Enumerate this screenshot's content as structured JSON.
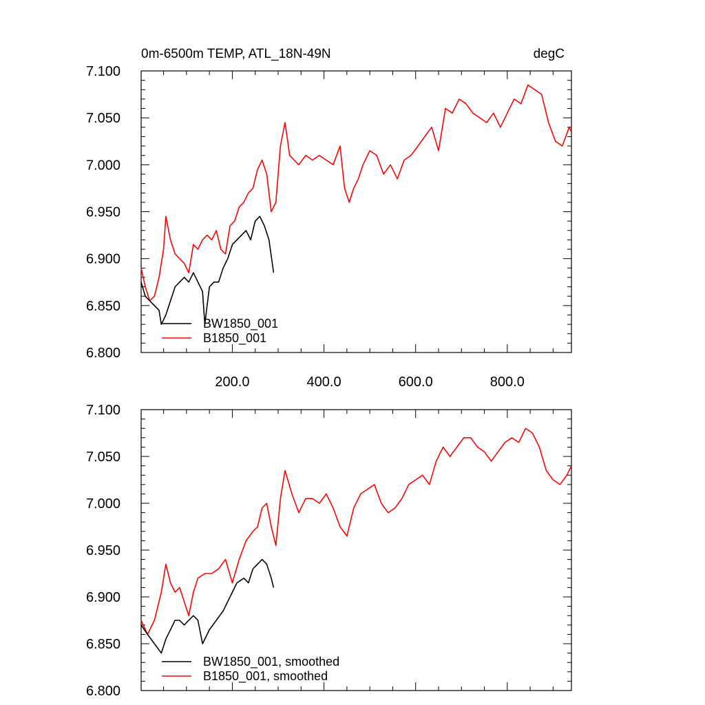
{
  "chart_data": [
    {
      "type": "line",
      "title": "0m-6500m TEMP, ATL_18N-49N",
      "units": "degC",
      "xlim": [
        1,
        940
      ],
      "ylim": [
        6.8,
        7.1
      ],
      "x_ticks": [
        200,
        400,
        600,
        800
      ],
      "x_tick_labels": [
        "200.0",
        "400.0",
        "600.0",
        "800.0"
      ],
      "y_ticks": [
        6.8,
        6.85,
        6.9,
        6.95,
        7.0,
        7.05,
        7.1
      ],
      "y_tick_labels": [
        "6.800",
        "6.850",
        "6.900",
        "6.950",
        "7.000",
        "7.050",
        "7.100"
      ],
      "grid": false,
      "legend_position": "bottom-left",
      "series": [
        {
          "name": "BW1850_001",
          "color": "#000000",
          "x": [
            1,
            10,
            20,
            30,
            40,
            45,
            55,
            65,
            75,
            85,
            95,
            105,
            115,
            125,
            135,
            140,
            150,
            160,
            170,
            180,
            190,
            200,
            210,
            220,
            230,
            240,
            250,
            260,
            270,
            280,
            290
          ],
          "y": [
            6.875,
            6.86,
            6.855,
            6.85,
            6.845,
            6.83,
            6.84,
            6.855,
            6.87,
            6.875,
            6.88,
            6.875,
            6.885,
            6.875,
            6.865,
            6.83,
            6.87,
            6.875,
            6.875,
            6.89,
            6.9,
            6.915,
            6.92,
            6.925,
            6.93,
            6.92,
            6.94,
            6.945,
            6.935,
            6.92,
            6.885
          ]
        },
        {
          "name": "B1850_001",
          "color": "#ff0000",
          "x": [
            1,
            10,
            20,
            30,
            40,
            50,
            55,
            65,
            75,
            85,
            95,
            105,
            115,
            125,
            135,
            145,
            155,
            165,
            175,
            185,
            195,
            205,
            215,
            225,
            235,
            245,
            255,
            265,
            275,
            285,
            295,
            305,
            315,
            325,
            335,
            345,
            360,
            375,
            390,
            405,
            420,
            435,
            445,
            455,
            465,
            475,
            485,
            500,
            515,
            530,
            545,
            560,
            575,
            590,
            605,
            620,
            635,
            650,
            665,
            680,
            695,
            710,
            725,
            740,
            755,
            770,
            785,
            800,
            815,
            830,
            845,
            860,
            875,
            890,
            905,
            920,
            935,
            940
          ],
          "y": [
            6.89,
            6.87,
            6.855,
            6.86,
            6.88,
            6.91,
            6.945,
            6.92,
            6.905,
            6.9,
            6.895,
            6.885,
            6.915,
            6.91,
            6.92,
            6.925,
            6.92,
            6.93,
            6.91,
            6.905,
            6.935,
            6.94,
            6.955,
            6.96,
            6.97,
            6.975,
            6.995,
            7.005,
            6.99,
            6.95,
            6.96,
            7.02,
            7.045,
            7.01,
            7.005,
            7.0,
            7.01,
            7.005,
            7.01,
            7.005,
            7.0,
            7.02,
            6.975,
            6.96,
            6.975,
            6.985,
            7.0,
            7.015,
            7.01,
            6.99,
            7.0,
            6.985,
            7.005,
            7.01,
            7.02,
            7.03,
            7.04,
            7.015,
            7.06,
            7.055,
            7.07,
            7.065,
            7.055,
            7.05,
            7.045,
            7.055,
            7.04,
            7.055,
            7.07,
            7.065,
            7.085,
            7.08,
            7.075,
            7.045,
            7.025,
            7.02,
            7.04,
            7.035
          ]
        }
      ]
    },
    {
      "type": "line",
      "title": "",
      "xlim": [
        1,
        940
      ],
      "ylim": [
        6.8,
        7.1
      ],
      "x_ticks": [
        200,
        400,
        600,
        800
      ],
      "y_ticks": [
        6.8,
        6.85,
        6.9,
        6.95,
        7.0,
        7.05,
        7.1
      ],
      "y_tick_labels": [
        "6.800",
        "6.850",
        "6.900",
        "6.950",
        "7.000",
        "7.050",
        "7.100"
      ],
      "grid": false,
      "legend_position": "bottom-left",
      "series": [
        {
          "name": "BW1850_001, smoothed",
          "color": "#000000",
          "x": [
            1,
            15,
            30,
            45,
            55,
            65,
            75,
            85,
            95,
            105,
            115,
            125,
            135,
            150,
            165,
            180,
            195,
            210,
            225,
            235,
            245,
            255,
            265,
            275,
            285,
            290
          ],
          "y": [
            6.87,
            6.86,
            6.85,
            6.84,
            6.855,
            6.865,
            6.875,
            6.875,
            6.87,
            6.875,
            6.88,
            6.875,
            6.85,
            6.865,
            6.875,
            6.885,
            6.9,
            6.915,
            6.92,
            6.915,
            6.93,
            6.935,
            6.94,
            6.935,
            6.92,
            6.91
          ]
        },
        {
          "name": "B1850_001, smoothed",
          "color": "#ff0000",
          "x": [
            1,
            15,
            30,
            45,
            55,
            65,
            75,
            85,
            95,
            105,
            115,
            125,
            140,
            155,
            170,
            185,
            200,
            215,
            230,
            245,
            255,
            265,
            275,
            285,
            295,
            305,
            315,
            330,
            345,
            360,
            375,
            390,
            405,
            420,
            435,
            450,
            465,
            480,
            495,
            510,
            525,
            540,
            555,
            570,
            585,
            600,
            615,
            630,
            645,
            660,
            675,
            690,
            705,
            720,
            735,
            750,
            765,
            780,
            795,
            810,
            825,
            840,
            855,
            870,
            885,
            900,
            915,
            930,
            940
          ],
          "y": [
            6.875,
            6.86,
            6.875,
            6.905,
            6.935,
            6.915,
            6.905,
            6.91,
            6.895,
            6.88,
            6.905,
            6.92,
            6.925,
            6.925,
            6.93,
            6.94,
            6.915,
            6.94,
            6.96,
            6.97,
            6.975,
            6.995,
            7.0,
            6.975,
            6.955,
            7.005,
            7.035,
            7.01,
            6.99,
            7.005,
            7.005,
            7.0,
            7.01,
            6.995,
            6.975,
            6.965,
            6.995,
            7.01,
            7.015,
            7.02,
            7.0,
            6.99,
            6.995,
            7.005,
            7.02,
            7.025,
            7.03,
            7.02,
            7.045,
            7.06,
            7.05,
            7.06,
            7.07,
            7.07,
            7.06,
            7.055,
            7.045,
            7.055,
            7.065,
            7.07,
            7.065,
            7.08,
            7.075,
            7.06,
            7.035,
            7.025,
            7.02,
            7.03,
            7.04
          ]
        }
      ]
    }
  ]
}
